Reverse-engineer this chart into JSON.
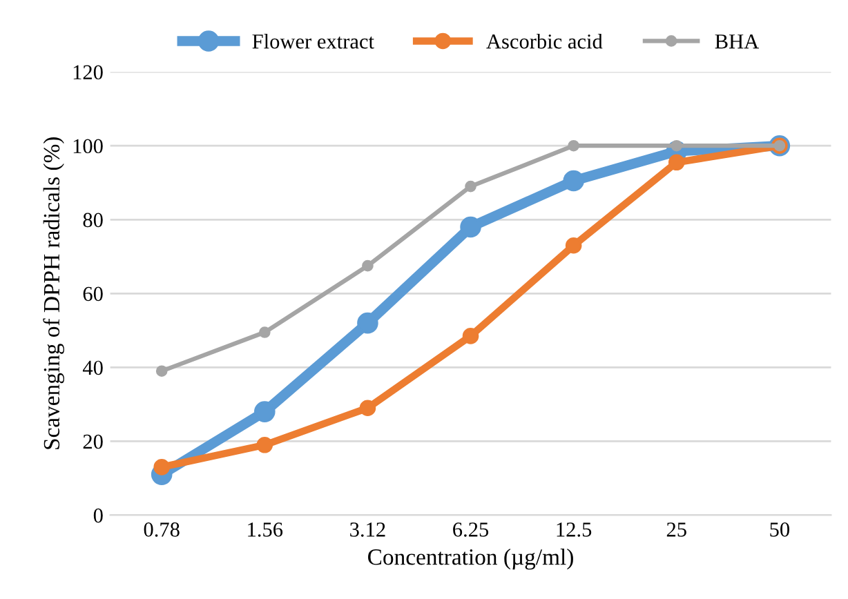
{
  "chart_data": {
    "type": "line",
    "xlabel": "Concentration (µg/ml)",
    "ylabel": "Scavenging of DPPH radicals (%)",
    "categories": [
      "0.78",
      "1.56",
      "3.12",
      "6.25",
      "12.5",
      "25",
      "50"
    ],
    "series": [
      {
        "name": "Flower extract",
        "color": "#5b9bd5",
        "values": [
          11,
          28,
          52,
          78,
          90.5,
          98.5,
          100
        ]
      },
      {
        "name": "Ascorbic acid",
        "color": "#ed7d31",
        "values": [
          13,
          19,
          29,
          48.5,
          73,
          95.5,
          100
        ]
      },
      {
        "name": "BHA",
        "color": "#a5a5a5",
        "values": [
          39,
          49.5,
          67.5,
          89,
          100,
          100,
          100
        ]
      }
    ],
    "ylim": [
      0,
      120
    ],
    "yticks": [
      0,
      20,
      40,
      60,
      80,
      100,
      120
    ],
    "grid": "y",
    "legend": "top",
    "marker": "circle",
    "line_style": "solid"
  }
}
